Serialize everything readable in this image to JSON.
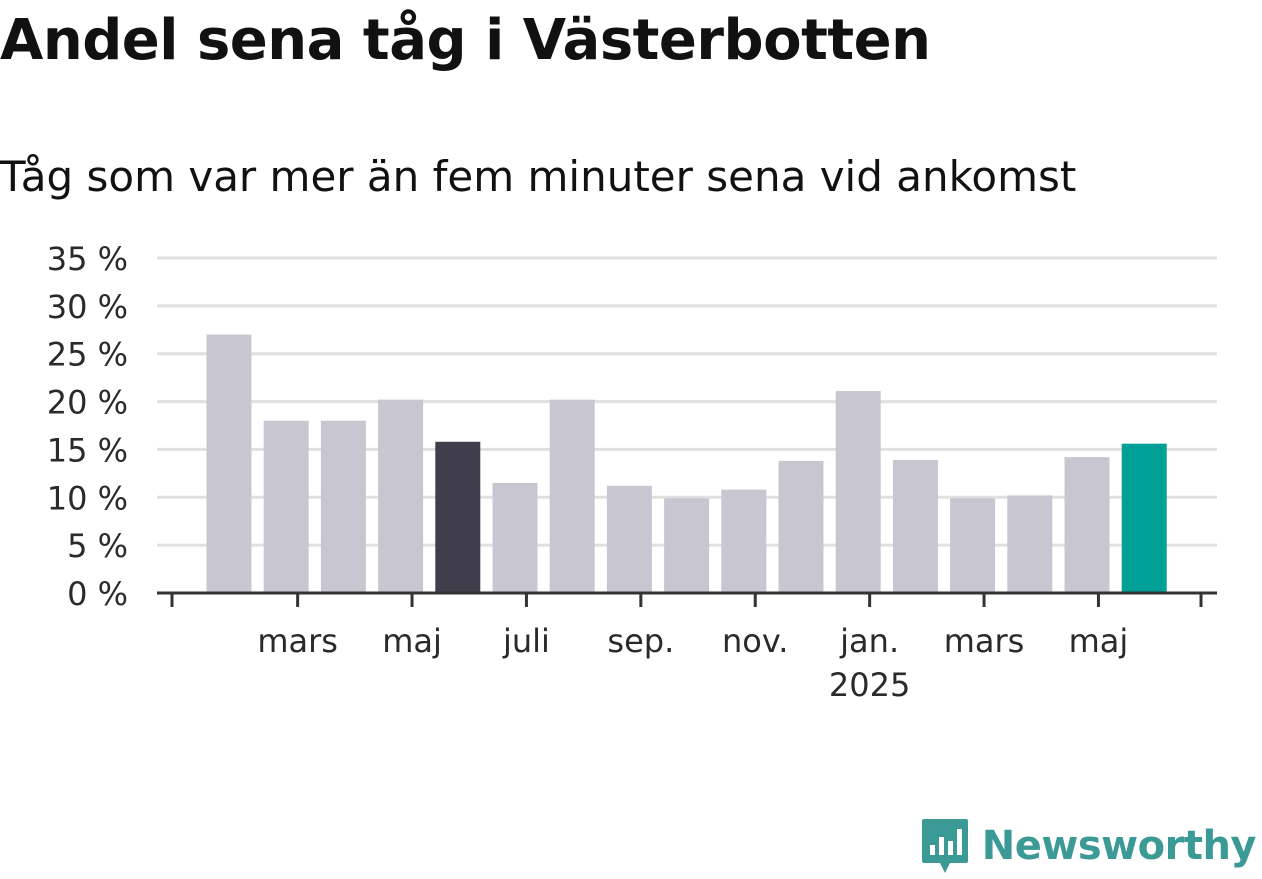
{
  "title": "Andel sena tåg i Västerbotten",
  "subtitle": "Tåg som var mer än fem minuter sena vid ankomst",
  "brand": {
    "name": "Newsworthy",
    "icon": "newsworthy-logo-icon",
    "color": "#3c9a96"
  },
  "colors": {
    "default_bar": "#c8c7d1",
    "highlight_bar": "#403e4b",
    "latest_bar": "#00a096",
    "grid": "#e0e0e0",
    "axis": "#333333"
  },
  "chart_data": {
    "type": "bar",
    "title": "Andel sena tåg i Västerbotten",
    "subtitle": "Tåg som var mer än fem minuter sena vid ankomst",
    "xlabel": "",
    "ylabel": "",
    "ylim": [
      0,
      35
    ],
    "yticks": [
      0,
      5,
      10,
      15,
      20,
      25,
      30,
      35
    ],
    "ytick_labels": [
      "0 %",
      "5 %",
      "10 %",
      "15 %",
      "20 %",
      "25 %",
      "30 %",
      "35 %"
    ],
    "grid": true,
    "categories": [
      "2024-02",
      "2024-03",
      "2024-04",
      "2024-05",
      "2024-06",
      "2024-07",
      "2024-08",
      "2024-09",
      "2024-10",
      "2024-11",
      "2024-12",
      "2025-01",
      "2025-02",
      "2025-03",
      "2025-04",
      "2025-05",
      "2025-06"
    ],
    "values": [
      27.0,
      18.0,
      18.0,
      20.2,
      15.8,
      11.5,
      20.2,
      11.2,
      9.9,
      10.8,
      13.8,
      21.1,
      13.9,
      9.9,
      10.2,
      14.2,
      15.6
    ],
    "bar_colors": [
      "default",
      "default",
      "default",
      "default",
      "highlight",
      "default",
      "default",
      "default",
      "default",
      "default",
      "default",
      "default",
      "default",
      "default",
      "default",
      "default",
      "latest"
    ],
    "x_tick_labels": [
      {
        "index": 1,
        "label": "mars",
        "sublabel": ""
      },
      {
        "index": 3,
        "label": "maj",
        "sublabel": ""
      },
      {
        "index": 5,
        "label": "juli",
        "sublabel": ""
      },
      {
        "index": 7,
        "label": "sep.",
        "sublabel": ""
      },
      {
        "index": 9,
        "label": "nov.",
        "sublabel": ""
      },
      {
        "index": 11,
        "label": "jan.",
        "sublabel": "2025"
      },
      {
        "index": 13,
        "label": "mars",
        "sublabel": ""
      },
      {
        "index": 15,
        "label": "maj",
        "sublabel": ""
      }
    ]
  }
}
